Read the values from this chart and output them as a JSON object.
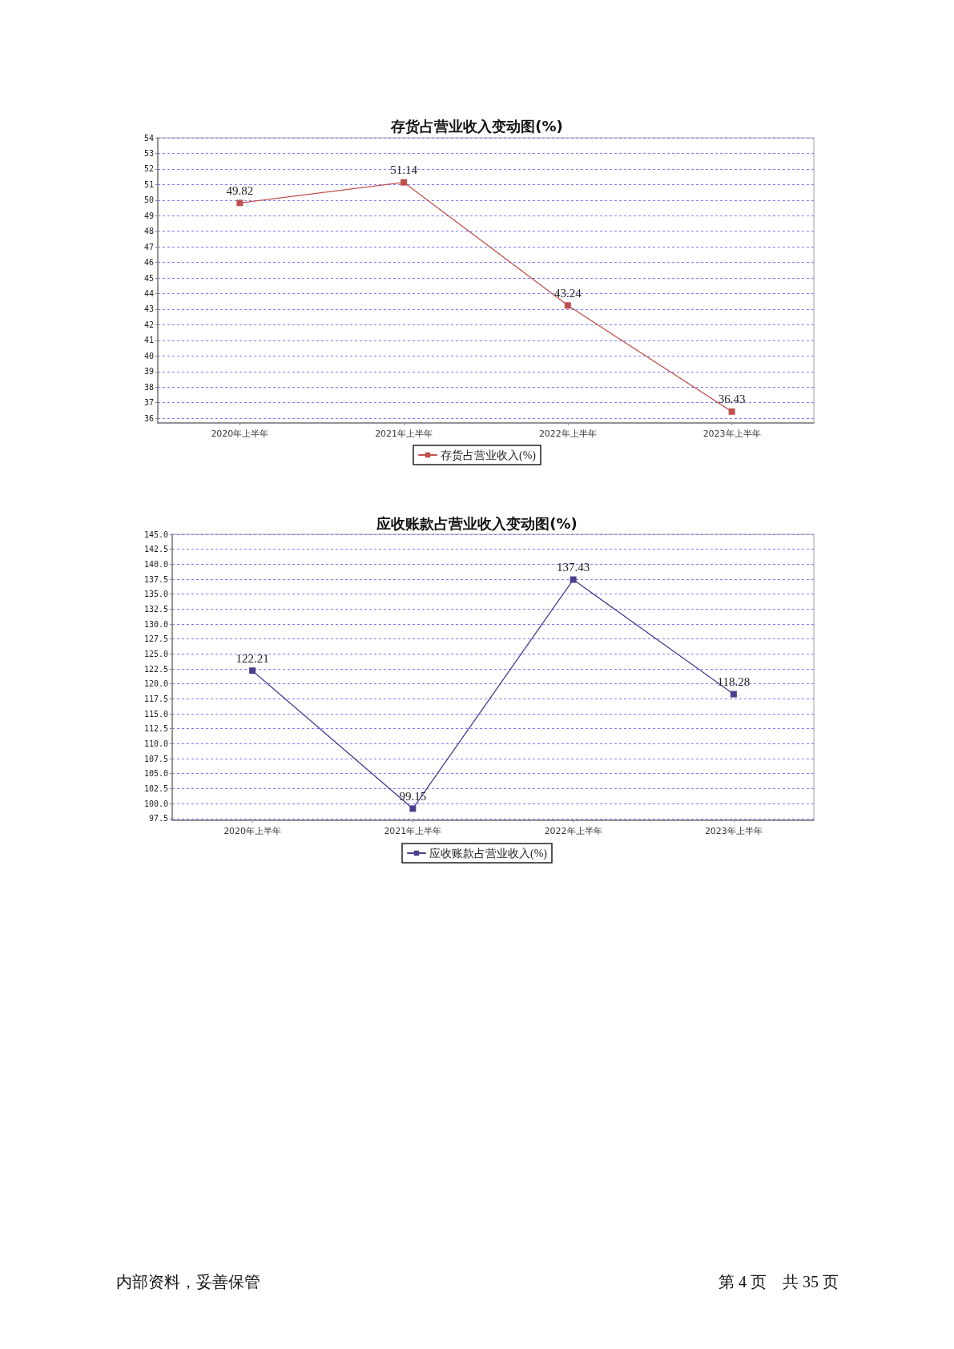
{
  "chart_data": [
    {
      "type": "line",
      "title": "存货占营业收入变动图(%)",
      "categories": [
        "2020年上半年",
        "2021年上半年",
        "2022年上半年",
        "2023年上半年"
      ],
      "series": [
        {
          "name": "存货占营业收入(%)",
          "color": "#c0504d",
          "values": [
            49.82,
            51.14,
            43.24,
            36.43
          ]
        }
      ],
      "ylim": [
        35.7,
        54
      ],
      "yticks": [
        36,
        37,
        38,
        39,
        40,
        41,
        42,
        43,
        44,
        45,
        46,
        47,
        48,
        49,
        50,
        51,
        52,
        53,
        54
      ],
      "grid": "y",
      "legend": "bottom",
      "marker": "square",
      "data_labels": true
    },
    {
      "type": "line",
      "title": "应收账款占营业收入变动图(%)",
      "categories": [
        "2020年上半年",
        "2021年上半年",
        "2022年上半年",
        "2023年上半年"
      ],
      "series": [
        {
          "name": "应收账款占营业收入(%)",
          "color": "#4b3c8c",
          "values": [
            122.21,
            99.15,
            137.43,
            118.28
          ]
        }
      ],
      "ylim": [
        97.2,
        145
      ],
      "yticks": [
        97.5,
        {
          "value": 100,
          "label": "100.0"
        },
        102.5,
        {
          "value": 105,
          "label": "105.0"
        },
        107.5,
        {
          "value": 110,
          "label": "110.0"
        },
        112.5,
        {
          "value": 115,
          "label": "115.0"
        },
        117.5,
        {
          "value": 120,
          "label": "120.0"
        },
        122.5,
        {
          "value": 125,
          "label": "125.0"
        },
        127.5,
        {
          "value": 130,
          "label": "130.0"
        },
        132.5,
        {
          "value": 135,
          "label": "135.0"
        },
        137.5,
        {
          "value": 140,
          "label": "140.0"
        },
        142.5,
        {
          "value": 145,
          "label": "145.0"
        }
      ],
      "grid": "y",
      "legend": "bottom",
      "marker": "square",
      "data_labels": true,
      "annotations": [
        "内部资料，妥善保管",
        "第 4 页　共 35 页"
      ]
    }
  ]
}
